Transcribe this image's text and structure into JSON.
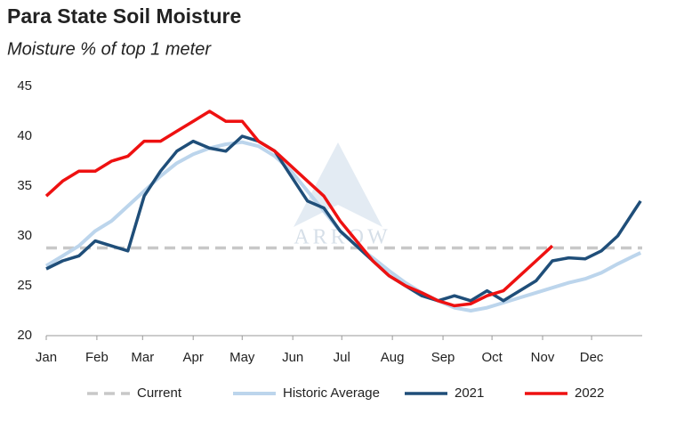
{
  "chart_data": {
    "type": "line",
    "title": "Para State Soil Moisture",
    "subtitle": "Moisture % of top 1 meter",
    "watermark": "ARROW",
    "x": [
      0,
      10,
      20,
      30,
      40,
      50,
      60,
      70,
      80,
      90,
      100,
      110,
      120,
      130,
      140,
      150,
      160,
      170,
      180,
      190,
      200,
      210,
      220,
      230,
      240,
      250,
      260,
      270,
      280,
      290,
      300,
      310,
      320,
      330,
      340,
      350,
      360,
      364
    ],
    "xlim": [
      0,
      365
    ],
    "xticks": [
      {
        "value": 0,
        "label": "Jan"
      },
      {
        "value": 31,
        "label": "Feb"
      },
      {
        "value": 59,
        "label": "Mar"
      },
      {
        "value": 90,
        "label": "Apr"
      },
      {
        "value": 120,
        "label": "May"
      },
      {
        "value": 151,
        "label": "Jun"
      },
      {
        "value": 181,
        "label": "Jul"
      },
      {
        "value": 212,
        "label": "Aug"
      },
      {
        "value": 243,
        "label": "Sep"
      },
      {
        "value": 273,
        "label": "Oct"
      },
      {
        "value": 304,
        "label": "Nov"
      },
      {
        "value": 334,
        "label": "Dec"
      }
    ],
    "ylim": [
      20,
      45
    ],
    "yticks": [
      20,
      25,
      30,
      35,
      40,
      45
    ],
    "reference": {
      "name": "Current",
      "value": 28.8,
      "color": "#c8c8c8"
    },
    "series": [
      {
        "name": "Historic Average",
        "color": "#bcd5ec",
        "width": 4,
        "values": [
          27,
          28,
          29,
          30.5,
          31.5,
          33,
          34.5,
          36,
          37.3,
          38.2,
          38.8,
          39.2,
          39.4,
          39,
          38,
          36.5,
          34.5,
          32.5,
          30.5,
          29,
          27.8,
          26.5,
          25.3,
          24.3,
          23.5,
          22.8,
          22.5,
          22.8,
          23.3,
          23.8,
          24.3,
          24.8,
          25.3,
          25.7,
          26.3,
          27.2,
          28,
          28.3
        ]
      },
      {
        "name": "2021",
        "color": "#1f4e79",
        "width": 3.5,
        "values": [
          26.7,
          27.5,
          28,
          29.5,
          29,
          28.5,
          34,
          36.5,
          38.5,
          39.5,
          38.8,
          38.5,
          40,
          39.5,
          38.5,
          36,
          33.5,
          32.8,
          30.5,
          29,
          27.5,
          26,
          25,
          24,
          23.5,
          24,
          23.5,
          24.5,
          23.5,
          24.5,
          25.5,
          27.5,
          27.8,
          27.7,
          28.5,
          30,
          32.5,
          33.5
        ]
      },
      {
        "name": "2022",
        "color": "#ee1111",
        "width": 3.5,
        "values": [
          34,
          35.5,
          36.5,
          36.5,
          37.5,
          38,
          39.5,
          39.5,
          40.5,
          41.5,
          42.5,
          41.5,
          41.5,
          39.5,
          38.5,
          37,
          35.5,
          34,
          31.5,
          29.5,
          27.5,
          26,
          25,
          24.3,
          23.5,
          23,
          23.2,
          24,
          24.5,
          26,
          27.5,
          29,
          null,
          null,
          null,
          null,
          null,
          null
        ]
      }
    ]
  }
}
